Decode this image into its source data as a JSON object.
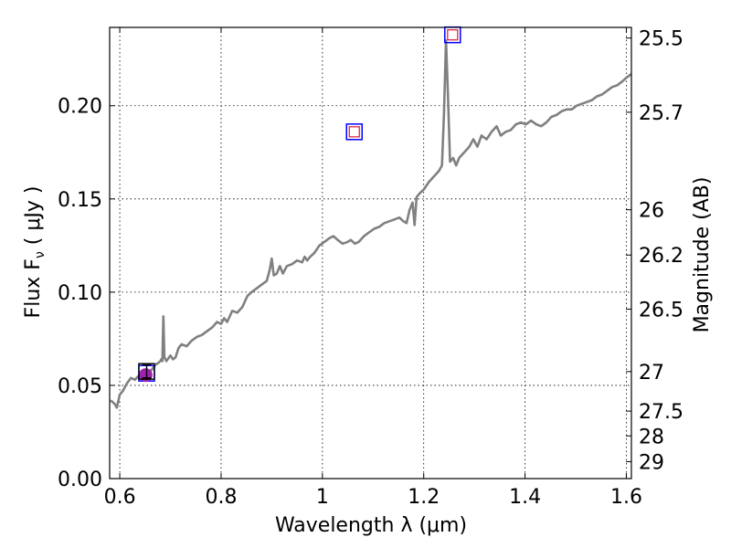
{
  "chart_data": {
    "type": "line",
    "xlabel": "Wavelength  λ (μm)",
    "ylabel": "Flux  F",
    "ylabel_sub": "ν",
    "ylabel_unit": " ( μJy )",
    "ylabel_right": "Magnitude (AB)",
    "xlim": [
      0.58,
      1.61
    ],
    "ylim": [
      0.0,
      0.242
    ],
    "grid": true,
    "x_ticks": [
      {
        "value": 0.6,
        "label": "0.6"
      },
      {
        "value": 0.8,
        "label": "0.8"
      },
      {
        "value": 1.0,
        "label": "1"
      },
      {
        "value": 1.2,
        "label": "1.2"
      },
      {
        "value": 1.4,
        "label": "1.4"
      },
      {
        "value": 1.6,
        "label": "1.6"
      }
    ],
    "y_ticks": [
      {
        "value": 0.0,
        "label": "0.00"
      },
      {
        "value": 0.05,
        "label": "0.05"
      },
      {
        "value": 0.1,
        "label": "0.10"
      },
      {
        "value": 0.15,
        "label": "0.15"
      },
      {
        "value": 0.2,
        "label": "0.20"
      }
    ],
    "magnitude_ticks": [
      {
        "flux": 0.2363,
        "label": "25.5"
      },
      {
        "flux": 0.1965,
        "label": "25.7"
      },
      {
        "flux": 0.1442,
        "label": "26"
      },
      {
        "flux": 0.1199,
        "label": "26.2"
      },
      {
        "flux": 0.0909,
        "label": "26.5"
      },
      {
        "flux": 0.0574,
        "label": "27"
      },
      {
        "flux": 0.0362,
        "label": "27.5"
      },
      {
        "flux": 0.0229,
        "label": "28"
      },
      {
        "flux": 0.0091,
        "label": "29"
      }
    ],
    "series": [
      {
        "type": "line",
        "color": "#808080",
        "points": [
          [
            0.582,
            0.042
          ],
          [
            0.59,
            0.04
          ],
          [
            0.594,
            0.038
          ],
          [
            0.6,
            0.045
          ],
          [
            0.606,
            0.047
          ],
          [
            0.614,
            0.051
          ],
          [
            0.622,
            0.054
          ],
          [
            0.63,
            0.053
          ],
          [
            0.64,
            0.056
          ],
          [
            0.648,
            0.057
          ],
          [
            0.655,
            0.058
          ],
          [
            0.662,
            0.058
          ],
          [
            0.67,
            0.061
          ],
          [
            0.676,
            0.062
          ],
          [
            0.68,
            0.063
          ],
          [
            0.682,
            0.064
          ],
          [
            0.684,
            0.063
          ],
          [
            0.686,
            0.087
          ],
          [
            0.688,
            0.065
          ],
          [
            0.692,
            0.063
          ],
          [
            0.7,
            0.066
          ],
          [
            0.705,
            0.064
          ],
          [
            0.71,
            0.065
          ],
          [
            0.716,
            0.07
          ],
          [
            0.722,
            0.072
          ],
          [
            0.732,
            0.071
          ],
          [
            0.742,
            0.074
          ],
          [
            0.752,
            0.076
          ],
          [
            0.762,
            0.077
          ],
          [
            0.772,
            0.079
          ],
          [
            0.782,
            0.081
          ],
          [
            0.792,
            0.084
          ],
          [
            0.8,
            0.083
          ],
          [
            0.806,
            0.086
          ],
          [
            0.812,
            0.084
          ],
          [
            0.822,
            0.09
          ],
          [
            0.832,
            0.089
          ],
          [
            0.842,
            0.092
          ],
          [
            0.852,
            0.098
          ],
          [
            0.86,
            0.1
          ],
          [
            0.87,
            0.102
          ],
          [
            0.88,
            0.104
          ],
          [
            0.89,
            0.106
          ],
          [
            0.896,
            0.112
          ],
          [
            0.9,
            0.118
          ],
          [
            0.904,
            0.109
          ],
          [
            0.91,
            0.11
          ],
          [
            0.916,
            0.114
          ],
          [
            0.922,
            0.11
          ],
          [
            0.93,
            0.114
          ],
          [
            0.94,
            0.115
          ],
          [
            0.95,
            0.117
          ],
          [
            0.96,
            0.116
          ],
          [
            0.965,
            0.119
          ],
          [
            0.97,
            0.117
          ],
          [
            0.976,
            0.119
          ],
          [
            0.984,
            0.121
          ],
          [
            0.994,
            0.125
          ],
          [
            1.004,
            0.127
          ],
          [
            1.014,
            0.129
          ],
          [
            1.022,
            0.13
          ],
          [
            1.03,
            0.128
          ],
          [
            1.04,
            0.126
          ],
          [
            1.05,
            0.127
          ],
          [
            1.056,
            0.128
          ],
          [
            1.064,
            0.126
          ],
          [
            1.072,
            0.127
          ],
          [
            1.082,
            0.13
          ],
          [
            1.092,
            0.132
          ],
          [
            1.102,
            0.134
          ],
          [
            1.112,
            0.135
          ],
          [
            1.122,
            0.137
          ],
          [
            1.132,
            0.138
          ],
          [
            1.142,
            0.139
          ],
          [
            1.152,
            0.14
          ],
          [
            1.16,
            0.138
          ],
          [
            1.166,
            0.137
          ],
          [
            1.172,
            0.144
          ],
          [
            1.178,
            0.148
          ],
          [
            1.182,
            0.136
          ],
          [
            1.186,
            0.151
          ],
          [
            1.192,
            0.153
          ],
          [
            1.2,
            0.155
          ],
          [
            1.21,
            0.159
          ],
          [
            1.22,
            0.162
          ],
          [
            1.23,
            0.165
          ],
          [
            1.236,
            0.168
          ],
          [
            1.24,
            0.196
          ],
          [
            1.244,
            0.235
          ],
          [
            1.248,
            0.205
          ],
          [
            1.252,
            0.17
          ],
          [
            1.258,
            0.172
          ],
          [
            1.264,
            0.168
          ],
          [
            1.27,
            0.172
          ],
          [
            1.28,
            0.175
          ],
          [
            1.29,
            0.178
          ],
          [
            1.298,
            0.182
          ],
          [
            1.306,
            0.178
          ],
          [
            1.314,
            0.184
          ],
          [
            1.324,
            0.182
          ],
          [
            1.334,
            0.186
          ],
          [
            1.344,
            0.189
          ],
          [
            1.352,
            0.184
          ],
          [
            1.362,
            0.186
          ],
          [
            1.372,
            0.187
          ],
          [
            1.382,
            0.19
          ],
          [
            1.392,
            0.191
          ],
          [
            1.402,
            0.19
          ],
          [
            1.412,
            0.192
          ],
          [
            1.422,
            0.19
          ],
          [
            1.432,
            0.189
          ],
          [
            1.442,
            0.191
          ],
          [
            1.452,
            0.194
          ],
          [
            1.462,
            0.195
          ],
          [
            1.472,
            0.197
          ],
          [
            1.482,
            0.198
          ],
          [
            1.492,
            0.198
          ],
          [
            1.502,
            0.2
          ],
          [
            1.512,
            0.201
          ],
          [
            1.522,
            0.202
          ],
          [
            1.532,
            0.203
          ],
          [
            1.542,
            0.205
          ],
          [
            1.552,
            0.206
          ],
          [
            1.562,
            0.208
          ],
          [
            1.572,
            0.21
          ],
          [
            1.582,
            0.211
          ],
          [
            1.592,
            0.213
          ],
          [
            1.6,
            0.215
          ],
          [
            1.61,
            0.217
          ]
        ]
      }
    ],
    "markers": [
      {
        "kind": "square",
        "x": 1.063,
        "y": 0.186,
        "edge": "#0000ff",
        "size": 17,
        "width": 1.5
      },
      {
        "kind": "square",
        "x": 1.063,
        "y": 0.186,
        "edge": "#e0284a",
        "size": 11,
        "width": 1.3
      },
      {
        "kind": "square",
        "x": 1.257,
        "y": 0.238,
        "edge": "#0000ff",
        "size": 17,
        "width": 1.5
      },
      {
        "kind": "square",
        "x": 1.257,
        "y": 0.238,
        "edge": "#e0284a",
        "size": 11,
        "width": 1.3
      },
      {
        "kind": "square",
        "x": 0.653,
        "y": 0.0565,
        "edge": "#0000ff",
        "size": 17,
        "width": 1.5
      },
      {
        "kind": "circle",
        "x": 0.651,
        "y": 0.0555,
        "fill": "#a020b0",
        "size": 15
      },
      {
        "kind": "errorbar",
        "x": 0.653,
        "y": 0.0575,
        "yerr": 0.0035,
        "edge": "#000000",
        "width": 1.4
      },
      {
        "kind": "square",
        "x": 0.653,
        "y": 0.0575,
        "edge": "#000000",
        "size": 17,
        "width": 1.4
      }
    ]
  }
}
